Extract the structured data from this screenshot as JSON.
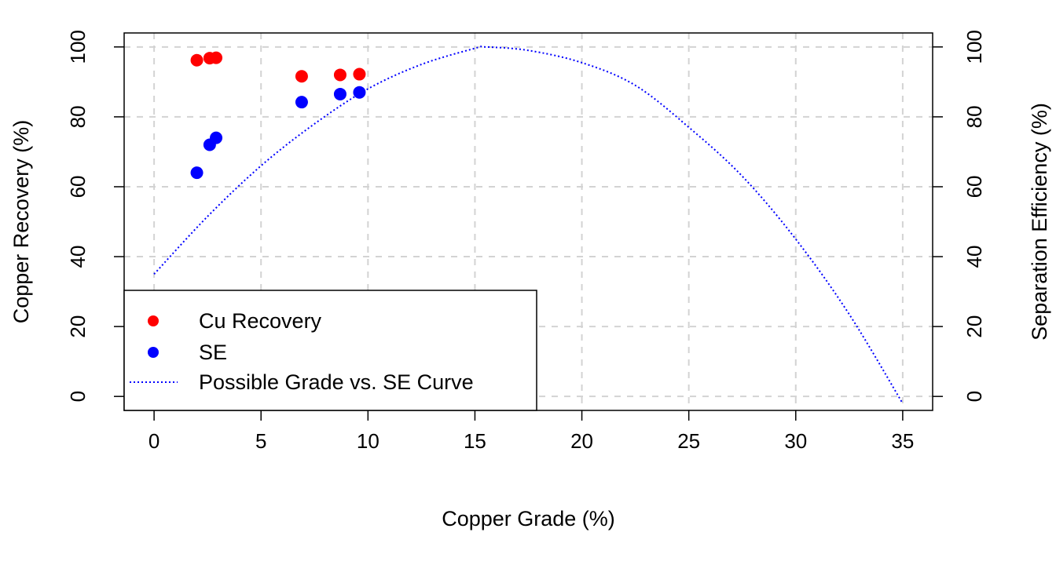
{
  "chart_data": {
    "type": "scatter",
    "xlabel": "Copper Grade (%)",
    "ylabel": "Copper Recovery (%)",
    "y2label": "Separation Efficiency (%)",
    "xlim": [
      -1.4,
      36.4
    ],
    "ylim": [
      -4,
      104
    ],
    "x_ticks": [
      "0",
      "5",
      "10",
      "15",
      "20",
      "25",
      "30",
      "35"
    ],
    "y_ticks": [
      "0",
      "20",
      "40",
      "60",
      "80",
      "100"
    ],
    "y2_ticks": [
      "0",
      "20",
      "40",
      "60",
      "80",
      "100"
    ],
    "grid": true,
    "grid_style": "dashed",
    "legend_position": "bottom-left",
    "series": [
      {
        "name": "Cu Recovery",
        "kind": "points",
        "color": "#ff0000",
        "points": [
          [
            2.0,
            96.2
          ],
          [
            2.6,
            96.8
          ],
          [
            2.9,
            96.9
          ],
          [
            6.9,
            91.6
          ],
          [
            8.7,
            92.0
          ],
          [
            9.6,
            92.2
          ]
        ]
      },
      {
        "name": "SE",
        "kind": "points",
        "color": "#0000ff",
        "points": [
          [
            2.0,
            64.0
          ],
          [
            2.6,
            72.0
          ],
          [
            2.9,
            74.0
          ],
          [
            6.9,
            84.2
          ],
          [
            8.7,
            86.5
          ],
          [
            9.6,
            87.0
          ]
        ]
      },
      {
        "name": "Possible Grade vs. SE Curve",
        "kind": "line",
        "style": "dotted",
        "color": "#0000ff",
        "points": [
          [
            0,
            35.0
          ],
          [
            2.5,
            51.5
          ],
          [
            5,
            66.0
          ],
          [
            7.5,
            78.0
          ],
          [
            10,
            88.0
          ],
          [
            12.5,
            95.0
          ],
          [
            15,
            99.6
          ],
          [
            15.5,
            100.0
          ],
          [
            17.5,
            99.0
          ],
          [
            20,
            95.5
          ],
          [
            22.5,
            89.0
          ],
          [
            25,
            77.0
          ],
          [
            27.5,
            63.0
          ],
          [
            30,
            45.0
          ],
          [
            32.5,
            23.5
          ],
          [
            35,
            -2.0
          ]
        ]
      }
    ]
  }
}
